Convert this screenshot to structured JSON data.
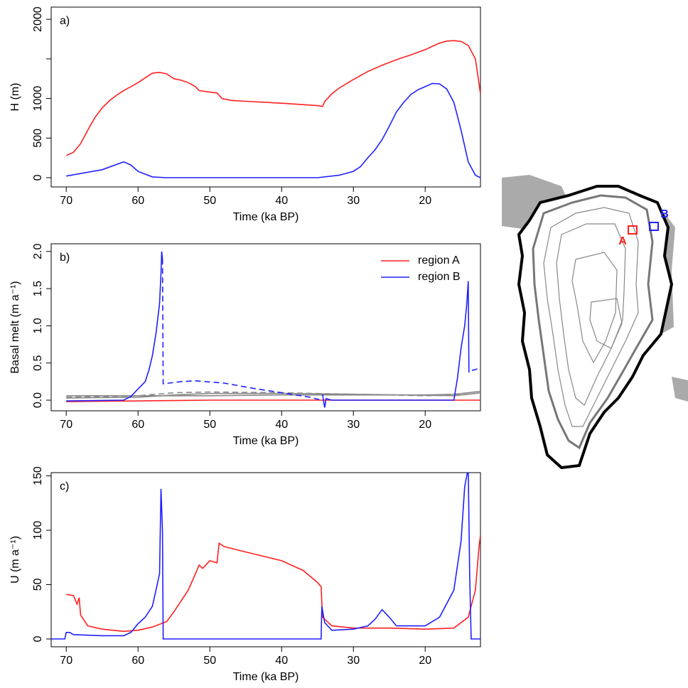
{
  "chart_data": [
    {
      "type": "line",
      "title": "a)",
      "xlabel": "Time (ka BP)",
      "ylabel": "H (m)",
      "xlim": [
        72.1,
        12.3
      ],
      "xticks": [
        70,
        60,
        50,
        40,
        30,
        20
      ],
      "ylim": [
        -117,
        2154
      ],
      "yticks": [
        0,
        500,
        1000,
        {
          "value": 1500,
          "label": null
        },
        2000
      ],
      "series": [
        {
          "color": "#ff2020",
          "x": [
            70,
            69,
            68,
            67,
            66,
            65,
            64,
            63,
            62,
            61,
            60,
            59,
            58,
            57,
            56,
            55,
            54,
            53,
            52,
            51.5,
            50,
            49,
            48.7,
            48.3,
            47,
            45,
            40,
            35,
            34.3,
            34,
            33,
            32,
            30,
            28,
            26,
            24,
            22,
            20,
            18,
            17,
            16,
            15,
            14,
            13,
            12.3
          ],
          "values": [
            280,
            320,
            430,
            600,
            760,
            880,
            970,
            1040,
            1100,
            1150,
            1200,
            1260,
            1320,
            1330,
            1310,
            1250,
            1230,
            1200,
            1150,
            1100,
            1080,
            1070,
            1040,
            1000,
            975,
            965,
            940,
            910,
            900,
            960,
            1060,
            1130,
            1240,
            1340,
            1420,
            1490,
            1550,
            1616,
            1700,
            1725,
            1730,
            1720,
            1670,
            1500,
            1060
          ]
        },
        {
          "color": "#2020ff",
          "x": [
            70,
            65,
            62,
            61,
            60,
            58,
            56,
            40,
            35,
            32,
            30,
            29,
            28,
            27,
            26,
            25,
            24,
            23,
            22,
            21,
            20,
            19,
            18,
            17,
            16,
            15,
            14,
            13,
            12.3
          ],
          "values": [
            20,
            100,
            200,
            160,
            80,
            10,
            0,
            0,
            0,
            30,
            80,
            140,
            250,
            350,
            480,
            650,
            830,
            950,
            1050,
            1110,
            1150,
            1190,
            1185,
            1120,
            950,
            600,
            200,
            30,
            0
          ]
        }
      ]
    },
    {
      "type": "line",
      "title": "b)",
      "xlabel": "Time (ka BP)",
      "ylabel": "Basal melt (m a⁻¹)",
      "xlim": [
        72.1,
        12.3
      ],
      "xticks": [
        70,
        60,
        50,
        40,
        30,
        20
      ],
      "ylim": [
        -0.143,
        2.103
      ],
      "yticks": [
        {
          "value": 0,
          "label": "0.0"
        },
        {
          "value": 0.5,
          "label": "0.5"
        },
        {
          "value": 1,
          "label": "1.0"
        },
        {
          "value": 1.5,
          "label": "1.5"
        },
        {
          "value": 2,
          "label": "2.0"
        }
      ],
      "legend": "top-right",
      "series": [
        {
          "color": "#888888",
          "x": [
            70,
            50,
            40,
            30,
            20,
            16,
            14,
            12.3
          ],
          "values": [
            0.06,
            0.06,
            0.07,
            0.07,
            0.07,
            0.08,
            0.1,
            0.12
          ]
        },
        {
          "color": "#888888",
          "x": [
            70,
            60,
            55,
            50,
            40,
            30,
            16,
            14,
            12.3
          ],
          "values": [
            0.03,
            0.04,
            0.07,
            0.09,
            0.09,
            0.08,
            0.06,
            0.08,
            0.1
          ]
        },
        {
          "color": "#888888",
          "dash": true,
          "x": [
            70,
            60,
            55,
            50,
            40,
            30,
            20,
            15,
            12.3
          ],
          "values": [
            0.04,
            0.06,
            0.1,
            0.11,
            0.1,
            0.08,
            0.06,
            0.07,
            0.1
          ]
        },
        {
          "name": "region A",
          "color": "#ff2020",
          "x": [
            70,
            50,
            34,
            12.3
          ],
          "values": [
            -0.02,
            0,
            0,
            0
          ]
        },
        {
          "name": "region B",
          "color": "#2020ff",
          "x": [
            70,
            62,
            61,
            60,
            59,
            58.5,
            58,
            57.5,
            57,
            56.8,
            56.7,
            56.6,
            35,
            34.3,
            34,
            33.8,
            33,
            20,
            16,
            15.5,
            15,
            14.5,
            14.2,
            14,
            13.9
          ],
          "values": [
            -0.01,
            0,
            0.05,
            0.15,
            0.25,
            0.4,
            0.6,
            0.9,
            1.3,
            1.7,
            2.0,
            1.9,
            null,
            0.08,
            -0.1,
            0.02,
            0,
            0,
            0,
            0.3,
            0.7,
            1.0,
            1.3,
            1.6,
            0.37
          ]
        },
        {
          "color": "#2020ff",
          "dash": true,
          "x": [
            56.6,
            56.5,
            54,
            52,
            48,
            44,
            40,
            36,
            34.5,
            13.9,
            13.5,
            12.3
          ],
          "values": [
            1.9,
            0.22,
            0.25,
            0.26,
            0.23,
            0.16,
            0.1,
            0.04,
            0,
            null,
            0.4,
            0.43
          ]
        }
      ]
    },
    {
      "type": "line",
      "title": "c)",
      "xlabel": "Time (ka BP)",
      "ylabel": "U (m a⁻¹)",
      "xlim": [
        72.1,
        12.3
      ],
      "xticks": [
        70,
        60,
        50,
        40,
        30,
        20
      ],
      "ylim": [
        -7.2,
        153
      ],
      "yticks": [
        0,
        50,
        100,
        150
      ],
      "series": [
        {
          "color": "#ff2020",
          "x": [
            70,
            69,
            68.5,
            68.2,
            68,
            67,
            65,
            62,
            60,
            58,
            56,
            55,
            54,
            53,
            52,
            51.5,
            51,
            50,
            49,
            48.7,
            48,
            45,
            40,
            37,
            35,
            34.5,
            34.3,
            33,
            30,
            25,
            20,
            16,
            14,
            13,
            12.5,
            12.3
          ],
          "values": [
            41,
            40,
            32,
            38,
            22,
            12,
            9,
            7,
            8,
            11,
            16,
            25,
            35,
            45,
            60,
            68,
            65,
            72,
            70,
            88,
            85,
            80,
            72,
            63,
            52,
            48,
            20,
            12,
            10,
            10,
            9,
            10,
            20,
            45,
            85,
            95
          ]
        },
        {
          "color": "#2020ff",
          "x": [
            72.1,
            70.2,
            70,
            69.5,
            69,
            65,
            62,
            61,
            60,
            59,
            58,
            57.5,
            57,
            56.8,
            56.6,
            56.5,
            34.5,
            34.4,
            34,
            33,
            30,
            28,
            27,
            26,
            25,
            24,
            20,
            18,
            16,
            15,
            14.5,
            14,
            13.8,
            13.6,
            12.3
          ],
          "values": [
            0,
            0,
            6,
            6,
            4,
            3,
            3,
            6,
            14,
            20,
            30,
            45,
            60,
            138,
            100,
            0,
            0,
            30,
            15,
            8,
            9,
            12,
            18,
            27,
            20,
            12,
            12,
            20,
            45,
            90,
            140,
            157,
            60,
            0,
            0
          ]
        }
      ]
    }
  ],
  "map": {
    "labels": [
      "A",
      "B"
    ]
  }
}
